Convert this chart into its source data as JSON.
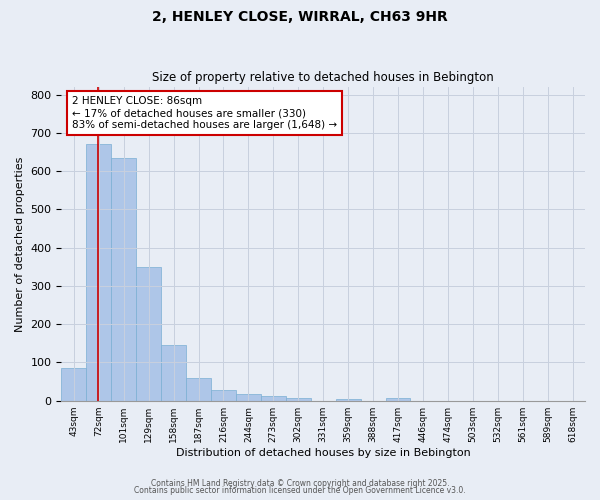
{
  "title1": "2, HENLEY CLOSE, WIRRAL, CH63 9HR",
  "title2": "Size of property relative to detached houses in Bebington",
  "xlabel": "Distribution of detached houses by size in Bebington",
  "ylabel": "Number of detached properties",
  "bar_labels": [
    "43sqm",
    "72sqm",
    "101sqm",
    "129sqm",
    "158sqm",
    "187sqm",
    "216sqm",
    "244sqm",
    "273sqm",
    "302sqm",
    "331sqm",
    "359sqm",
    "388sqm",
    "417sqm",
    "446sqm",
    "474sqm",
    "503sqm",
    "532sqm",
    "561sqm",
    "589sqm",
    "618sqm"
  ],
  "bar_values": [
    85,
    670,
    635,
    350,
    145,
    60,
    27,
    17,
    12,
    6,
    0,
    4,
    0,
    6,
    0,
    0,
    0,
    0,
    0,
    0,
    0
  ],
  "bar_color": "#aec6e8",
  "bar_edge_color": "#7aafd4",
  "grid_color": "#c8d0de",
  "background_color": "#e8edf5",
  "red_line_x": 1.48,
  "annotation_text": "2 HENLEY CLOSE: 86sqm\n← 17% of detached houses are smaller (330)\n83% of semi-detached houses are larger (1,648) →",
  "annotation_box_color": "#ffffff",
  "annotation_box_edge": "#cc0000",
  "ylim": [
    0,
    820
  ],
  "yticks": [
    0,
    100,
    200,
    300,
    400,
    500,
    600,
    700,
    800
  ],
  "footer1": "Contains HM Land Registry data © Crown copyright and database right 2025.",
  "footer2": "Contains public sector information licensed under the Open Government Licence v3.0."
}
